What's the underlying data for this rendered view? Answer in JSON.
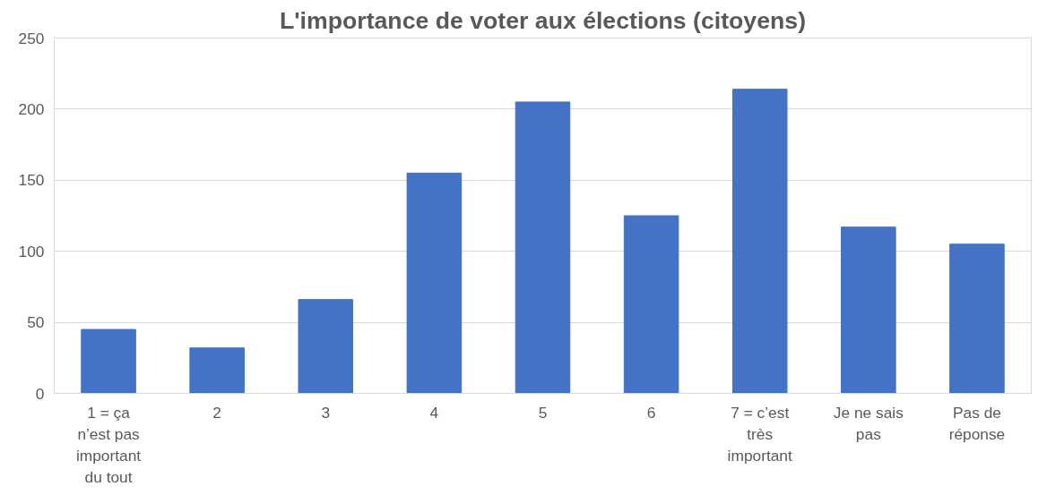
{
  "chart_data": {
    "type": "bar",
    "title": "L'importance de voter aux élections (citoyens)",
    "categories": [
      "1 = ça n’est pas important du tout",
      "2",
      "3",
      "4",
      "5",
      "6",
      "7 = c’est très important",
      "Je ne sais pas",
      "Pas de réponse"
    ],
    "values": [
      45,
      32,
      66,
      155,
      205,
      125,
      214,
      117,
      105
    ],
    "color": "#4472c4",
    "ylim": [
      0,
      250
    ],
    "yticks": [
      0,
      50,
      100,
      150,
      200,
      250
    ],
    "grid": "y"
  }
}
